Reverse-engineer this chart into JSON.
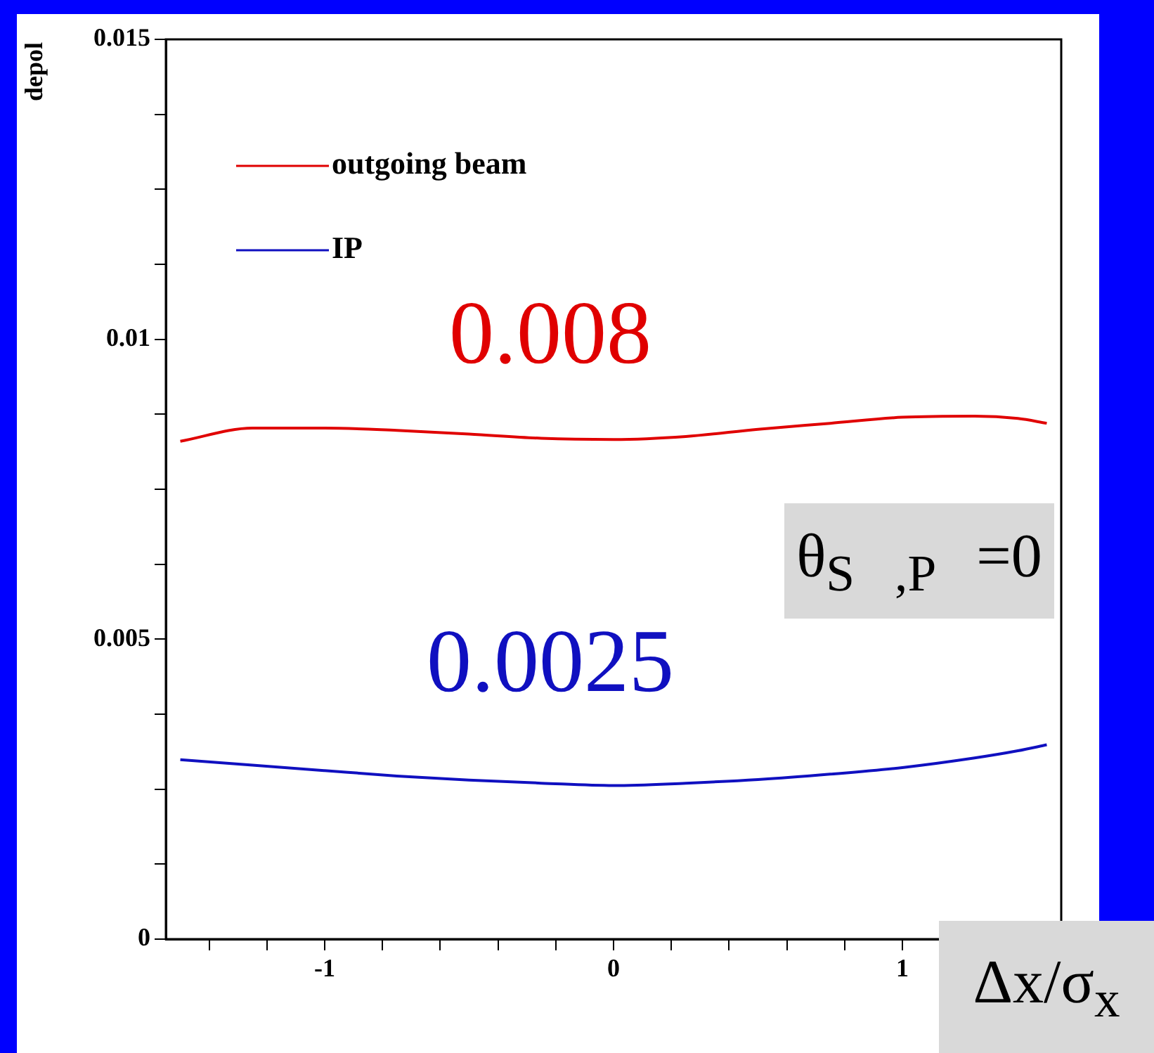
{
  "chart_data": {
    "type": "line",
    "xlabel": "Δx/σ$_{x}$",
    "ylabel": "depol",
    "xlim": [
      -1.55,
      1.55
    ],
    "xticks": [
      {
        "value": -1.4,
        "label": null
      },
      {
        "value": -1.2,
        "label": null
      },
      -1,
      {
        "value": -0.8,
        "label": null
      },
      {
        "value": -0.6,
        "label": null
      },
      {
        "value": -0.4,
        "label": null
      },
      {
        "value": -0.2,
        "label": null
      },
      0,
      {
        "value": 0.2,
        "label": null
      },
      {
        "value": 0.4,
        "label": null
      },
      {
        "value": 0.6,
        "label": null
      },
      {
        "value": 0.8,
        "label": null
      },
      1,
      {
        "value": 1.2,
        "label": null
      },
      {
        "value": 1.4,
        "label": null
      }
    ],
    "ylim": [
      0,
      0.015
    ],
    "yticks": [
      0,
      {
        "value": 0.00125,
        "label": null
      },
      {
        "value": 0.0025,
        "label": null
      },
      {
        "value": 0.00375,
        "label": null
      },
      0.005,
      {
        "value": 0.00625,
        "label": null
      },
      {
        "value": 0.0075,
        "label": null
      },
      {
        "value": 0.00875,
        "label": null
      },
      0.01,
      {
        "value": 0.01125,
        "label": null
      },
      {
        "value": 0.0125,
        "label": null
      },
      {
        "value": 0.01375,
        "label": null
      },
      0.015
    ],
    "x": [
      -1.5,
      -1.25,
      -1,
      -0.75,
      -0.5,
      -0.25,
      0,
      0.25,
      0.5,
      0.75,
      1,
      1.25,
      1.4,
      1.5
    ],
    "series": [
      {
        "name": "outgoing beam",
        "color": "#e00000",
        "values": [
          0.0083,
          0.00852,
          0.00852,
          0.00848,
          0.00842,
          0.00835,
          0.00833,
          0.00838,
          0.0085,
          0.0086,
          0.0087,
          0.00872,
          0.00868,
          0.0086
        ]
      },
      {
        "name": "IP",
        "color": "#1010c0",
        "values": [
          0.00299,
          0.0029,
          0.00281,
          0.00272,
          0.00265,
          0.0026,
          0.00256,
          0.0026,
          0.00266,
          0.00275,
          0.00286,
          0.00302,
          0.00314,
          0.00324
        ]
      }
    ],
    "annotations": [
      "0.008",
      "0.0025",
      "θ$_{S⃗,P⃗}$=0"
    ],
    "legend": "top left",
    "grid": false,
    "marker": "none",
    "line_style": "solid"
  }
}
